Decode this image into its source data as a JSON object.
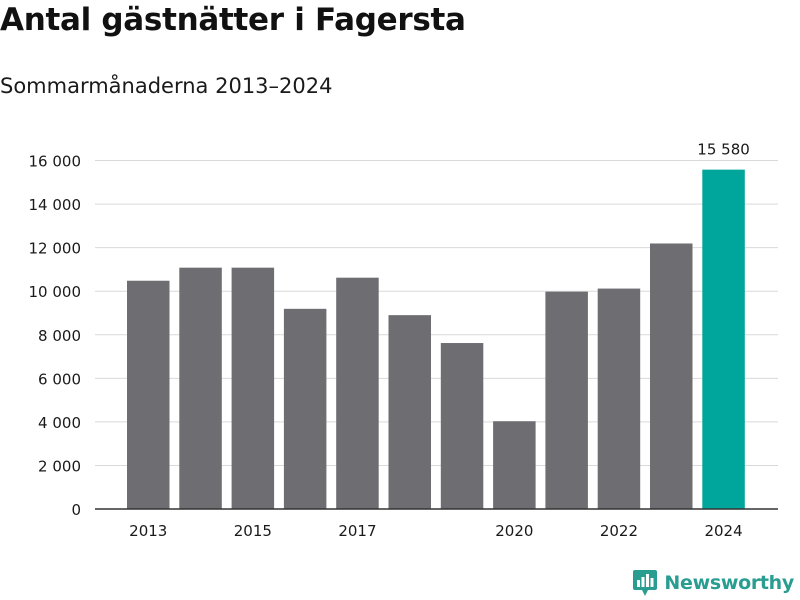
{
  "title": "Antal gästnätter i Fagersta",
  "subtitle": "Sommarmånaderna 2013–2024",
  "brand": {
    "name": "Newsworthy",
    "icon": "newsworthy-logo-icon"
  },
  "colors": {
    "bar_default": "#6e6d72",
    "bar_highlight": "#00a59b",
    "grid": "#d9d9d9",
    "axis": "#333333",
    "text": "#1a1a1a",
    "brand": "#2a9d91"
  },
  "chart_data": {
    "type": "bar",
    "categories": [
      "2013",
      "2014",
      "2015",
      "2016",
      "2017",
      "2018",
      "2019",
      "2020",
      "2021",
      "2022",
      "2023",
      "2024"
    ],
    "values": [
      10480,
      11080,
      11080,
      9190,
      10620,
      8900,
      7620,
      4030,
      9980,
      10120,
      12190,
      15580
    ],
    "highlight_index": 11,
    "data_labels": [
      {
        "index": 11,
        "text": "15 580"
      }
    ],
    "x_tick_labels": [
      "2013",
      "",
      "2015",
      "",
      "2017",
      "",
      "",
      "2020",
      "",
      "2022",
      "",
      "2024"
    ],
    "y_ticks": [
      0,
      2000,
      4000,
      6000,
      8000,
      10000,
      12000,
      14000,
      16000
    ],
    "y_tick_labels": [
      "0",
      "2 000",
      "4 000",
      "6 000",
      "8 000",
      "10 000",
      "12 000",
      "14 000",
      "16 000"
    ],
    "ylim": [
      0,
      16000
    ],
    "grid": true,
    "legend": "none",
    "title": "Antal gästnätter i Fagersta",
    "subtitle": "Sommarmånaderna 2013–2024",
    "xlabel": "",
    "ylabel": ""
  }
}
